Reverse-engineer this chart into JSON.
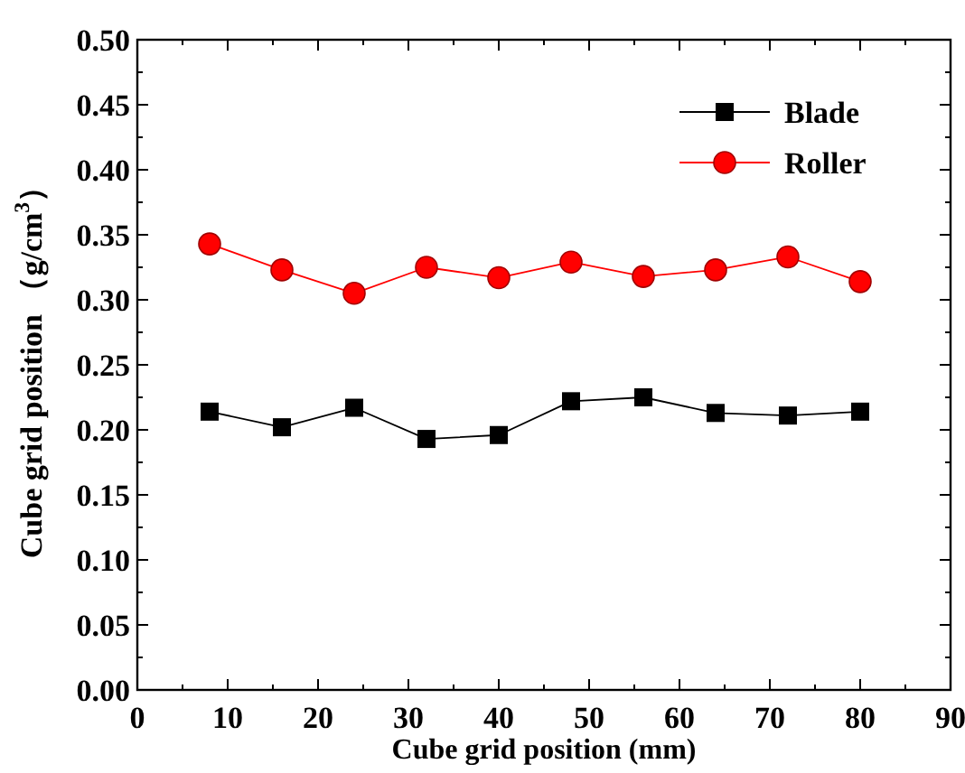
{
  "chart_data": {
    "type": "line",
    "xlabel": "Cube grid position (mm)",
    "ylabel": "Cube grid position （g/cm$^{3}$）",
    "x": [
      8,
      16,
      24,
      32,
      40,
      48,
      56,
      64,
      72,
      80
    ],
    "series": [
      {
        "name": "Blade",
        "color": "#000000",
        "marker": "square",
        "values": [
          0.214,
          0.202,
          0.217,
          0.193,
          0.196,
          0.222,
          0.225,
          0.213,
          0.211,
          0.214
        ]
      },
      {
        "name": "Roller",
        "color": "#ff0000",
        "marker": "circle",
        "values": [
          0.343,
          0.323,
          0.305,
          0.325,
          0.317,
          0.329,
          0.318,
          0.323,
          0.333,
          0.314
        ]
      }
    ],
    "xlim": [
      0,
      90
    ],
    "xticks": [
      0,
      10,
      20,
      30,
      40,
      50,
      60,
      70,
      80,
      90
    ],
    "ylim": [
      0,
      0.5
    ],
    "yticks": [
      {
        "value": 0,
        "label": "0.00"
      },
      {
        "value": 0.05,
        "label": "0.05"
      },
      {
        "value": 0.1,
        "label": "0.10"
      },
      {
        "value": 0.15,
        "label": "0.15"
      },
      {
        "value": 0.2,
        "label": "0.20"
      },
      {
        "value": 0.25,
        "label": "0.25"
      },
      {
        "value": 0.3,
        "label": "0.30"
      },
      {
        "value": 0.35,
        "label": "0.35"
      },
      {
        "value": 0.4,
        "label": "0.40"
      },
      {
        "value": 0.45,
        "label": "0.45"
      },
      {
        "value": 0.5,
        "label": "0.50"
      }
    ],
    "legend": "top right",
    "grid": false
  }
}
